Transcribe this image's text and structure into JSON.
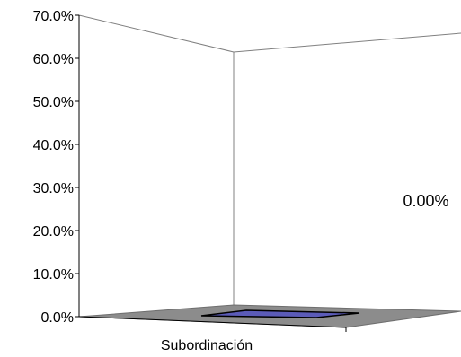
{
  "chart_data": {
    "type": "bar",
    "title": "",
    "xlabel": "",
    "ylabel": "",
    "categories": [
      "Subordinación"
    ],
    "values": [
      0.0
    ],
    "value_format": "percent",
    "data_labels": [
      "0.00%"
    ],
    "ylim": [
      0,
      70
    ],
    "y_ticks": [
      "0.0%",
      "10.0%",
      "20.0%",
      "30.0%",
      "40.0%",
      "50.0%",
      "60.0%",
      "70.0%"
    ],
    "is_3d": true,
    "grid": false,
    "legend": "none",
    "colors": {
      "bar": "#5b5bb8",
      "floor": "#8c8c8c",
      "walls": "#808080",
      "axis": "#000000"
    }
  }
}
